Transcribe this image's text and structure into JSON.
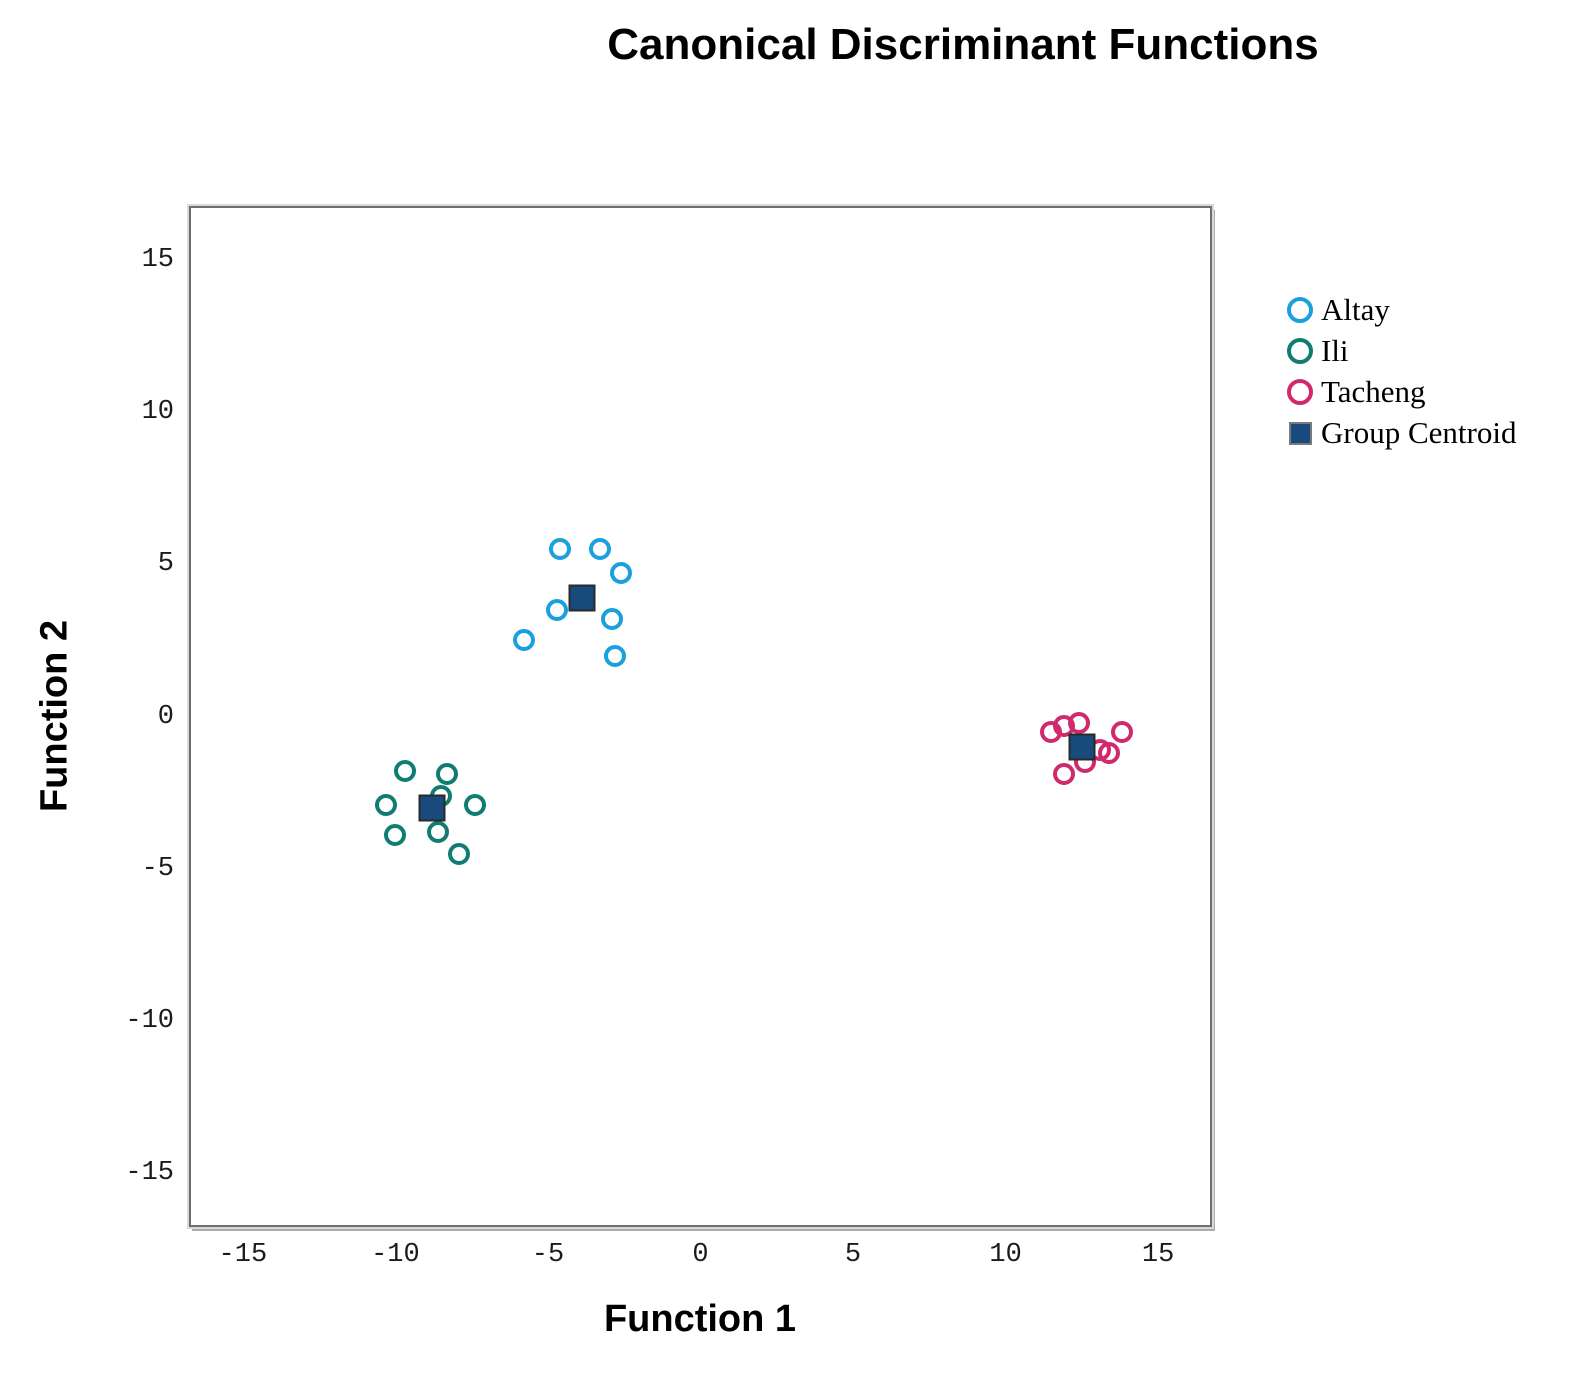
{
  "figure": {
    "background": "#ffffff",
    "frame_border_color": "#6e6e6e",
    "frame_shadow_color": "#ababab"
  },
  "chart_data": {
    "type": "scatter",
    "title": "Canonical Discriminant Functions",
    "xlabel": "Function 1",
    "ylabel": "Function 2",
    "xlim": [
      -16.7,
      16.7
    ],
    "ylim": [
      -16.7,
      16.7
    ],
    "xticks": [
      -15,
      -10,
      -5,
      0,
      5,
      10,
      15
    ],
    "yticks": [
      -15,
      -10,
      -5,
      0,
      5,
      10,
      15
    ],
    "grid": false,
    "legend_position": "right",
    "series": [
      {
        "name": "Altay",
        "marker": "circle",
        "color": "#1B9FDD",
        "points": [
          [
            -4.6,
            5.5
          ],
          [
            -3.3,
            5.5
          ],
          [
            -2.6,
            4.7
          ],
          [
            -4.7,
            3.5
          ],
          [
            -2.9,
            3.2
          ],
          [
            -5.8,
            2.5
          ],
          [
            -2.8,
            2.0
          ]
        ]
      },
      {
        "name": "Ili",
        "marker": "circle",
        "color": "#107C72",
        "points": [
          [
            -9.7,
            -1.8
          ],
          [
            -8.3,
            -1.9
          ],
          [
            -10.3,
            -2.9
          ],
          [
            -8.5,
            -2.6
          ],
          [
            -7.4,
            -2.9
          ],
          [
            -10.0,
            -3.9
          ],
          [
            -8.6,
            -3.8
          ],
          [
            -7.9,
            -4.5
          ]
        ]
      },
      {
        "name": "Tacheng",
        "marker": "circle",
        "color": "#D02A6C",
        "points": [
          [
            11.5,
            -0.5
          ],
          [
            11.9,
            -0.3
          ],
          [
            12.4,
            -0.2
          ],
          [
            13.8,
            -0.5
          ],
          [
            13.1,
            -1.1
          ],
          [
            13.4,
            -1.2
          ],
          [
            12.6,
            -1.5
          ],
          [
            11.9,
            -1.9
          ]
        ]
      },
      {
        "name": "Group Centroid",
        "marker": "square",
        "color": "#184A7E",
        "points": [
          [
            -3.9,
            3.9
          ],
          [
            -8.8,
            -3.0
          ],
          [
            12.5,
            -1.0
          ]
        ]
      }
    ],
    "legend": [
      {
        "label": "Altay",
        "marker": "circle",
        "color": "#1B9FDD"
      },
      {
        "label": "Ili",
        "marker": "circle",
        "color": "#107C72"
      },
      {
        "label": "Tacheng",
        "marker": "circle",
        "color": "#D02A6C"
      },
      {
        "label": "Group Centroid",
        "marker": "square",
        "color": "#184A7E"
      }
    ]
  }
}
